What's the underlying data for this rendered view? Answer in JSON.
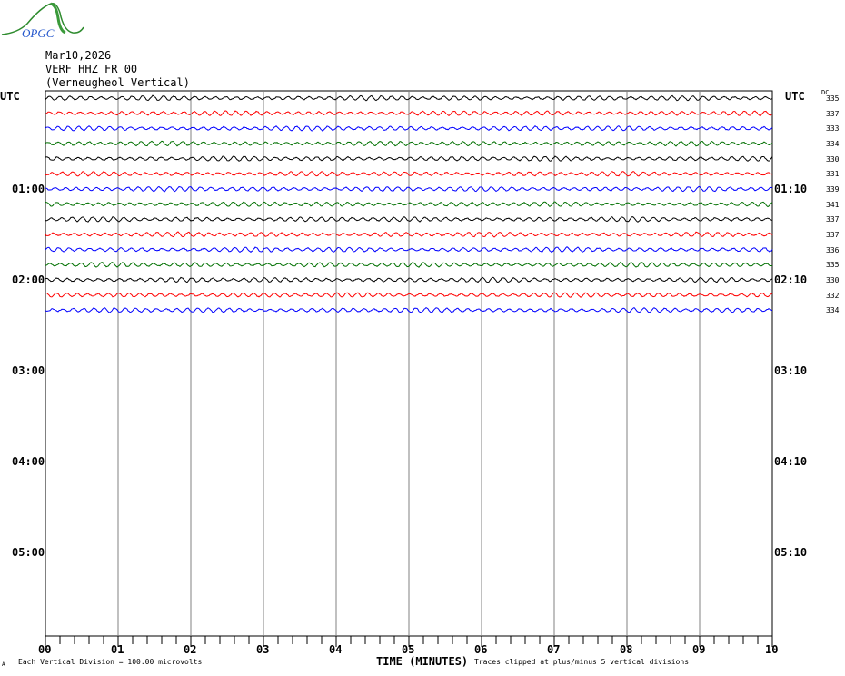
{
  "logo": {
    "text": "OPGC"
  },
  "header": {
    "date": "Mar10,2026",
    "station": "VERF HHZ FR 00",
    "description": "(Verneugheol Vertical)"
  },
  "chart_data": {
    "type": "line",
    "title": "",
    "left_axis_label": "UTC",
    "right_axis_label": "UTC",
    "dc_label": "DC",
    "left_time_labels": [
      "01:00",
      "02:00",
      "03:00",
      "04:00",
      "05:00"
    ],
    "right_time_labels": [
      "01:10",
      "02:10",
      "03:10",
      "04:10",
      "05:10"
    ],
    "x_tick_labels": [
      "00",
      "01",
      "02",
      "03",
      "04",
      "05",
      "06",
      "07",
      "08",
      "09",
      "10"
    ],
    "xlabel": "TIME (MINUTES)",
    "xlim": [
      0,
      10
    ],
    "minutes_per_line": 10,
    "hours_shown": 6,
    "grid": true,
    "trace_colors": [
      "#000000",
      "#ff0000",
      "#0000ff",
      "#007000"
    ],
    "traces": [
      {
        "dc": "335"
      },
      {
        "dc": "337"
      },
      {
        "dc": "333"
      },
      {
        "dc": "334"
      },
      {
        "dc": "330"
      },
      {
        "dc": "331"
      },
      {
        "dc": "339"
      },
      {
        "dc": "341"
      },
      {
        "dc": "337"
      },
      {
        "dc": "337"
      },
      {
        "dc": "336"
      },
      {
        "dc": "335"
      },
      {
        "dc": "330"
      },
      {
        "dc": "332"
      },
      {
        "dc": "334"
      }
    ]
  },
  "footer": {
    "corner_mark": "A",
    "scale_note": "Each Vertical Division =  100.00 microvolts",
    "clip_note": "Traces clipped at plus/minus 5 vertical divisions"
  }
}
